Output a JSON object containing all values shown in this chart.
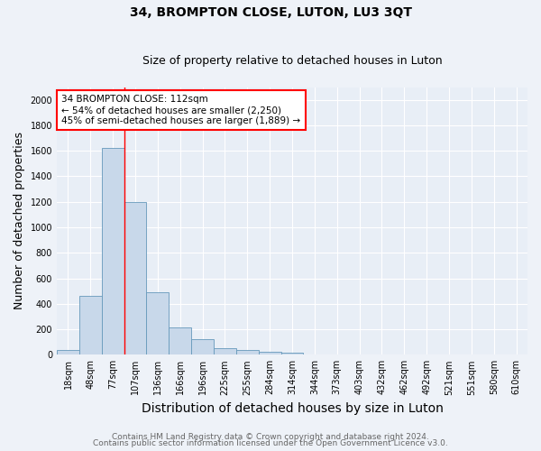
{
  "title": "34, BROMPTON CLOSE, LUTON, LU3 3QT",
  "subtitle": "Size of property relative to detached houses in Luton",
  "xlabel": "Distribution of detached houses by size in Luton",
  "ylabel": "Number of detached properties",
  "footer_line1": "Contains HM Land Registry data © Crown copyright and database right 2024.",
  "footer_line2": "Contains public sector information licensed under the Open Government Licence v3.0.",
  "bin_labels": [
    "18sqm",
    "48sqm",
    "77sqm",
    "107sqm",
    "136sqm",
    "166sqm",
    "196sqm",
    "225sqm",
    "255sqm",
    "284sqm",
    "314sqm",
    "344sqm",
    "373sqm",
    "403sqm",
    "432sqm",
    "462sqm",
    "492sqm",
    "521sqm",
    "551sqm",
    "580sqm",
    "610sqm"
  ],
  "bar_values": [
    35,
    460,
    1620,
    1200,
    490,
    215,
    125,
    50,
    35,
    20,
    15,
    0,
    0,
    0,
    0,
    0,
    0,
    0,
    0,
    0,
    0
  ],
  "bar_color": "#c8d8ea",
  "bar_edge_color": "#6699bb",
  "red_line_bin_idx": 3,
  "annotation_text": "34 BROMPTON CLOSE: 112sqm\n← 54% of detached houses are smaller (2,250)\n45% of semi-detached houses are larger (1,889) →",
  "annotation_box_color": "white",
  "annotation_box_edge": "red",
  "ylim": [
    0,
    2100
  ],
  "yticks": [
    0,
    200,
    400,
    600,
    800,
    1000,
    1200,
    1400,
    1600,
    1800,
    2000
  ],
  "bg_color": "#eef2f8",
  "plot_bg_color": "#e8eef6",
  "grid_color": "white",
  "title_fontsize": 10,
  "subtitle_fontsize": 9,
  "axis_label_fontsize": 9,
  "tick_fontsize": 7,
  "footer_fontsize": 6.5,
  "ann_fontsize": 7.5
}
